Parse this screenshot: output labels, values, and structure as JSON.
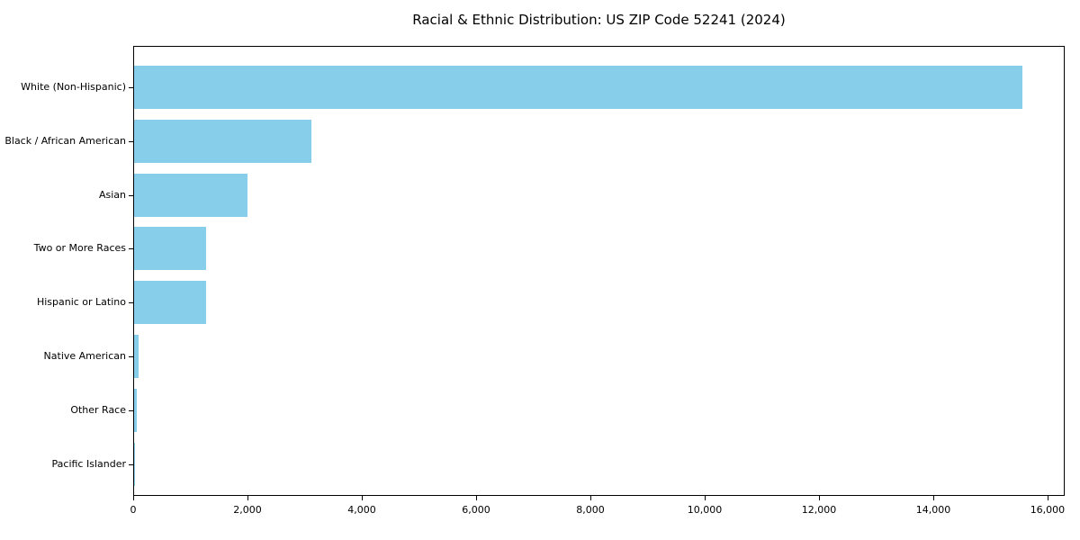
{
  "chart_data": {
    "type": "bar",
    "orientation": "horizontal",
    "title": "Racial & Ethnic Distribution: US ZIP Code 52241 (2024)",
    "categories": [
      "White (Non-Hispanic)",
      "Black / African American",
      "Asian",
      "Two or More Races",
      "Hispanic or Latino",
      "Native American",
      "Other Race",
      "Pacific Islander"
    ],
    "values": [
      15540,
      3100,
      1985,
      1260,
      1260,
      75,
      40,
      10
    ],
    "xlabel": "",
    "ylabel": "",
    "xlim": [
      0,
      16300
    ],
    "x_ticks": [
      0,
      2000,
      4000,
      6000,
      8000,
      10000,
      12000,
      14000,
      16000
    ],
    "x_tick_labels": [
      "0",
      "2,000",
      "4,000",
      "6,000",
      "8,000",
      "10,000",
      "12,000",
      "14,000",
      "16,000"
    ],
    "bar_color": "#87CEEB",
    "spine_color": "#000000",
    "text_color": "#000000",
    "grid": false,
    "legend": null
  }
}
